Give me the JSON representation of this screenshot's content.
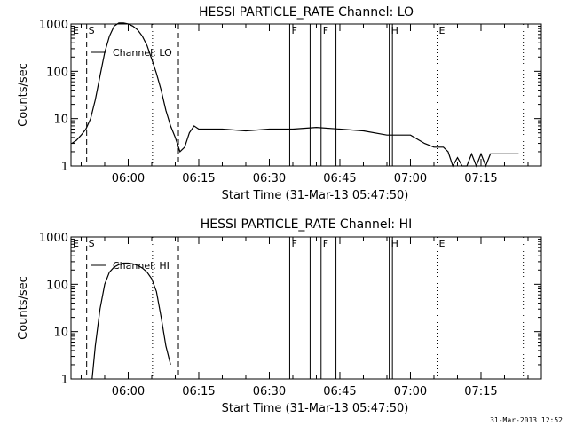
{
  "footer": {
    "timestamp": "31-Mar-2013 12:52"
  },
  "chart_data": [
    {
      "type": "line",
      "title": "HESSI PARTICLE_RATE Channel: LO",
      "xlabel": "Start Time (31-Mar-13 05:47:50)",
      "ylabel": "Counts/sec",
      "yscale": "log",
      "ylim": [
        1,
        1000
      ],
      "xlim": [
        "05:47:50",
        "07:27:50"
      ],
      "x_ticks": [
        "06:00",
        "06:15",
        "06:30",
        "06:45",
        "07:00",
        "07:15"
      ],
      "y_ticks": [
        "1",
        "10",
        "100",
        "1000"
      ],
      "legend": "Channel: LO",
      "grid": false,
      "series": [
        {
          "name": "Channel: LO",
          "x": [
            "05:48:00",
            "05:49:00",
            "05:50:00",
            "05:51:00",
            "05:52:00",
            "05:53:00",
            "05:54:00",
            "05:55:00",
            "05:56:00",
            "05:57:00",
            "05:58:00",
            "05:59:00",
            "06:00:00",
            "06:01:00",
            "06:02:00",
            "06:03:00",
            "06:04:00",
            "06:05:00",
            "06:06:00",
            "06:07:00",
            "06:08:00",
            "06:09:00",
            "06:10:00",
            "06:11:00",
            "06:12:00",
            "06:13:00",
            "06:14:00",
            "06:15:00",
            "06:20:00",
            "06:25:00",
            "06:30:00",
            "06:35:00",
            "06:40:00",
            "06:45:00",
            "06:50:00",
            "06:55:00",
            "07:00:00",
            "07:03:00",
            "07:05:00",
            "07:07:00",
            "07:08:00",
            "07:09:00",
            "07:10:00",
            "07:11:00",
            "07:12:00",
            "07:13:00",
            "07:14:00",
            "07:15:00",
            "07:16:00",
            "07:17:00",
            "07:18:00",
            "07:19:00",
            "07:20:00",
            "07:21:00",
            "07:22:00",
            "07:23:00"
          ],
          "y": [
            3,
            3.5,
            4.5,
            6,
            10,
            25,
            80,
            250,
            550,
            900,
            1050,
            1050,
            1000,
            900,
            750,
            550,
            350,
            180,
            90,
            40,
            15,
            7,
            4,
            2,
            2.5,
            5,
            7,
            6,
            6,
            5.5,
            6,
            6,
            6.5,
            6,
            5.5,
            4.5,
            4.5,
            3,
            2.5,
            2.5,
            2,
            1,
            1.5,
            1,
            1,
            1.8,
            1,
            1.8,
            1,
            1.8,
            1.8,
            1.8,
            1.8,
            1.8,
            1.8,
            1.8
          ]
        }
      ],
      "markers": [
        {
          "label": "E",
          "time": "05:47:50",
          "style": "dashed"
        },
        {
          "label": "S",
          "time": "05:51:10",
          "style": "dashed"
        },
        {
          "label": "",
          "time": "06:05:10",
          "style": "dotted"
        },
        {
          "label": "",
          "time": "06:10:40",
          "style": "dashed"
        },
        {
          "label": "F",
          "time": "06:34:20",
          "style": "solid"
        },
        {
          "label": "",
          "time": "06:38:40",
          "style": "solid"
        },
        {
          "label": "F",
          "time": "06:41:00",
          "style": "solid"
        },
        {
          "label": "",
          "time": "06:44:10",
          "style": "solid"
        },
        {
          "label": "H",
          "time": "06:55:30",
          "style": "solid"
        },
        {
          "label": "",
          "time": "06:56:10",
          "style": "solid"
        },
        {
          "label": "E",
          "time": "07:05:40",
          "style": "dotted"
        },
        {
          "label": "",
          "time": "07:24:00",
          "style": "dotted"
        }
      ]
    },
    {
      "type": "line",
      "title": "HESSI PARTICLE_RATE Channel: HI",
      "xlabel": "Start Time (31-Mar-13 05:47:50)",
      "ylabel": "Counts/sec",
      "yscale": "log",
      "ylim": [
        1,
        1000
      ],
      "xlim": [
        "05:47:50",
        "07:27:50"
      ],
      "x_ticks": [
        "06:00",
        "06:15",
        "06:30",
        "06:45",
        "07:00",
        "07:15"
      ],
      "y_ticks": [
        "1",
        "10",
        "100",
        "1000"
      ],
      "legend": "Channel: HI",
      "grid": false,
      "series": [
        {
          "name": "Channel: HI",
          "x": [
            "05:52:20",
            "05:53:00",
            "05:54:00",
            "05:55:00",
            "05:56:00",
            "05:57:00",
            "05:58:00",
            "05:59:00",
            "06:00:00",
            "06:01:00",
            "06:02:00",
            "06:03:00",
            "06:04:00",
            "06:05:00",
            "06:06:00",
            "06:07:00",
            "06:08:00",
            "06:09:00"
          ],
          "y": [
            1,
            5,
            30,
            100,
            180,
            230,
            260,
            280,
            280,
            270,
            250,
            220,
            180,
            130,
            70,
            20,
            5,
            2
          ]
        }
      ],
      "markers": [
        {
          "label": "E",
          "time": "05:47:50",
          "style": "dashed"
        },
        {
          "label": "S",
          "time": "05:51:10",
          "style": "dashed"
        },
        {
          "label": "",
          "time": "06:05:10",
          "style": "dotted"
        },
        {
          "label": "",
          "time": "06:10:40",
          "style": "dashed"
        },
        {
          "label": "F",
          "time": "06:34:20",
          "style": "solid"
        },
        {
          "label": "",
          "time": "06:38:40",
          "style": "solid"
        },
        {
          "label": "F",
          "time": "06:41:00",
          "style": "solid"
        },
        {
          "label": "",
          "time": "06:44:10",
          "style": "solid"
        },
        {
          "label": "H",
          "time": "06:55:30",
          "style": "solid"
        },
        {
          "label": "",
          "time": "06:56:10",
          "style": "solid"
        },
        {
          "label": "E",
          "time": "07:05:40",
          "style": "dotted"
        },
        {
          "label": "",
          "time": "07:24:00",
          "style": "dotted"
        }
      ]
    }
  ]
}
